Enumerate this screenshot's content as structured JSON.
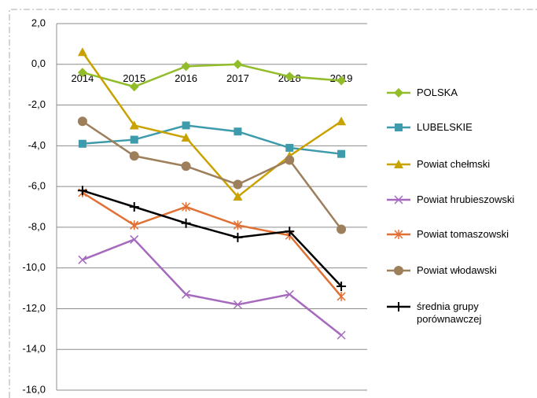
{
  "chart_data": {
    "type": "line",
    "categories": [
      "2014",
      "2015",
      "2016",
      "2017",
      "2018",
      "2019"
    ],
    "ylim": [
      -16,
      2
    ],
    "yticks": [
      {
        "value": 2,
        "label": "2,0"
      },
      {
        "value": 0,
        "label": "0,0"
      },
      {
        "value": -2,
        "label": "-2,0"
      },
      {
        "value": -4,
        "label": "-4,0"
      },
      {
        "value": -6,
        "label": "-6,0"
      },
      {
        "value": -8,
        "label": "-8,0"
      },
      {
        "value": -10,
        "label": "-10,0"
      },
      {
        "value": -12,
        "label": "-12,0"
      },
      {
        "value": -14,
        "label": "-14,0"
      },
      {
        "value": -16,
        "label": "-16,0"
      }
    ],
    "grid": true,
    "legend": "right",
    "series": [
      {
        "name": "POLSKA",
        "color": "#92bd2a",
        "marker": "diamond",
        "values": [
          -0.4,
          -1.1,
          -0.1,
          0.0,
          -0.6,
          -0.8
        ]
      },
      {
        "name": "LUBELSKIE",
        "color": "#3d9bab",
        "marker": "square",
        "values": [
          -3.9,
          -3.7,
          -3.0,
          -3.3,
          -4.1,
          -4.4
        ]
      },
      {
        "name": "Powiat chełmski",
        "color": "#c9a200",
        "marker": "triangle",
        "values": [
          0.6,
          -3.0,
          -3.6,
          -6.5,
          -4.5,
          -2.8
        ]
      },
      {
        "name": "Powiat hrubieszowski",
        "color": "#a569bd",
        "marker": "x",
        "values": [
          -9.6,
          -8.6,
          -11.3,
          -11.8,
          -11.3,
          -13.3
        ]
      },
      {
        "name": "Powiat tomaszowski",
        "color": "#e07034",
        "marker": "star",
        "values": [
          -6.3,
          -7.9,
          -7.0,
          -7.9,
          -8.4,
          -11.4
        ]
      },
      {
        "name": "Powiat włodawski",
        "color": "#9e7f5c",
        "marker": "circle",
        "values": [
          -2.8,
          -4.5,
          -5.0,
          -5.9,
          -4.7,
          -8.1
        ]
      },
      {
        "name": "średnia grupy porównawczej",
        "color": "#000000",
        "marker": "plus",
        "values": [
          -6.2,
          -7.0,
          -7.8,
          -8.5,
          -8.2,
          -10.9
        ]
      }
    ]
  }
}
